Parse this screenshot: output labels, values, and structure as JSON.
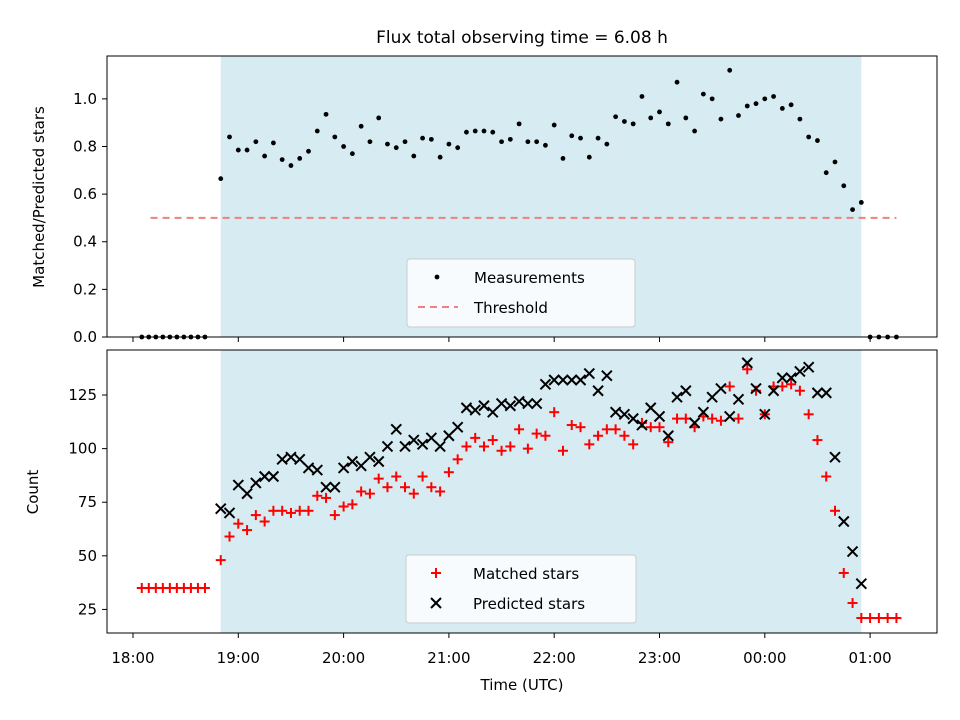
{
  "title": "Flux total observing time = 6.08 h",
  "xlabel": "Time (UTC)",
  "xticks": [
    "18:00",
    "19:00",
    "20:00",
    "21:00",
    "22:00",
    "23:00",
    "00:00",
    "01:00"
  ],
  "observing_window": {
    "start": "18:50",
    "end": "00:55",
    "color": "#add8e6"
  },
  "colors": {
    "measurements": "#000000",
    "threshold": "#f08080",
    "matched": "#ff0000",
    "predicted": "#000000"
  },
  "chart_data": [
    {
      "type": "scatter",
      "ylabel": "Matched/Predicted stars",
      "ylim": [
        0,
        1.18
      ],
      "yticks": [
        "0.0",
        "0.2",
        "0.4",
        "0.6",
        "0.8",
        "1.0"
      ],
      "threshold": {
        "label": "Threshold",
        "value": 0.5,
        "x_range": [
          "18:10",
          "01:15"
        ]
      },
      "legend": {
        "position": "bottom-center",
        "entries": [
          "Measurements",
          "Threshold"
        ]
      },
      "series": [
        {
          "name": "Measurements",
          "x": [
            "18:05",
            "18:09",
            "18:13",
            "18:17",
            "18:21",
            "18:25",
            "18:29",
            "18:33",
            "18:37",
            "18:41",
            "18:50",
            "18:55",
            "19:00",
            "19:05",
            "19:10",
            "19:15",
            "19:20",
            "19:25",
            "19:30",
            "19:35",
            "19:40",
            "19:45",
            "19:50",
            "19:55",
            "20:00",
            "20:05",
            "20:10",
            "20:15",
            "20:20",
            "20:25",
            "20:30",
            "20:35",
            "20:40",
            "20:45",
            "20:50",
            "20:55",
            "21:00",
            "21:05",
            "21:10",
            "21:15",
            "21:20",
            "21:25",
            "21:30",
            "21:35",
            "21:40",
            "21:45",
            "21:50",
            "21:55",
            "22:00",
            "22:05",
            "22:10",
            "22:15",
            "22:20",
            "22:25",
            "22:30",
            "22:35",
            "22:40",
            "22:45",
            "22:50",
            "22:55",
            "23:00",
            "23:05",
            "23:10",
            "23:15",
            "23:20",
            "23:25",
            "23:30",
            "23:35",
            "23:40",
            "23:45",
            "23:50",
            "23:55",
            "00:00",
            "00:05",
            "00:10",
            "00:15",
            "00:20",
            "00:25",
            "00:30",
            "00:35",
            "00:40",
            "00:45",
            "00:50",
            "00:55",
            "01:00",
            "01:05",
            "01:10",
            "01:15"
          ],
          "y": [
            0,
            0,
            0,
            0,
            0,
            0,
            0,
            0,
            0,
            0,
            0.665,
            0.84,
            0.785,
            0.785,
            0.82,
            0.76,
            0.815,
            0.745,
            0.72,
            0.75,
            0.78,
            0.865,
            0.935,
            0.84,
            0.8,
            0.77,
            0.885,
            0.82,
            0.92,
            0.81,
            0.795,
            0.82,
            0.76,
            0.835,
            0.83,
            0.755,
            0.81,
            0.795,
            0.86,
            0.865,
            0.865,
            0.86,
            0.82,
            0.83,
            0.895,
            0.82,
            0.82,
            0.805,
            0.89,
            0.75,
            0.845,
            0.835,
            0.755,
            0.835,
            0.81,
            0.925,
            0.905,
            0.895,
            1.01,
            0.92,
            0.945,
            0.895,
            1.07,
            0.92,
            0.865,
            1.02,
            1.0,
            0.915,
            1.12,
            0.93,
            0.97,
            0.98,
            1.0,
            1.01,
            0.96,
            0.975,
            0.915,
            0.84,
            0.825,
            0.69,
            0.735,
            0.635,
            0.535,
            0.565,
            0,
            0,
            0,
            0
          ]
        }
      ]
    },
    {
      "type": "scatter",
      "ylabel": "Count",
      "ylim": [
        14,
        146
      ],
      "yticks": [
        "25",
        "50",
        "75",
        "100",
        "125"
      ],
      "legend": {
        "position": "bottom-center",
        "entries": [
          "Matched stars",
          "Predicted stars"
        ]
      },
      "series": [
        {
          "name": "Matched stars",
          "x": [
            "18:05",
            "18:09",
            "18:13",
            "18:17",
            "18:21",
            "18:25",
            "18:29",
            "18:33",
            "18:37",
            "18:41",
            "18:50",
            "18:55",
            "19:00",
            "19:05",
            "19:10",
            "19:15",
            "19:20",
            "19:25",
            "19:30",
            "19:35",
            "19:40",
            "19:45",
            "19:50",
            "19:55",
            "20:00",
            "20:05",
            "20:10",
            "20:15",
            "20:20",
            "20:25",
            "20:30",
            "20:35",
            "20:40",
            "20:45",
            "20:50",
            "20:55",
            "21:00",
            "21:05",
            "21:10",
            "21:15",
            "21:20",
            "21:25",
            "21:30",
            "21:35",
            "21:40",
            "21:45",
            "21:50",
            "21:55",
            "22:00",
            "22:05",
            "22:10",
            "22:15",
            "22:20",
            "22:25",
            "22:30",
            "22:35",
            "22:40",
            "22:45",
            "22:50",
            "22:55",
            "23:00",
            "23:05",
            "23:10",
            "23:15",
            "23:20",
            "23:25",
            "23:30",
            "23:35",
            "23:40",
            "23:45",
            "23:50",
            "23:55",
            "00:00",
            "00:05",
            "00:10",
            "00:15",
            "00:20",
            "00:25",
            "00:30",
            "00:35",
            "00:40",
            "00:45",
            "00:50",
            "00:55",
            "01:00",
            "01:05",
            "01:10",
            "01:15"
          ],
          "y": [
            35,
            35,
            35,
            35,
            35,
            35,
            35,
            35,
            35,
            35,
            48,
            59,
            65,
            62,
            69,
            66,
            71,
            71,
            70,
            71,
            71,
            78,
            77,
            69,
            73,
            74,
            80,
            79,
            86,
            82,
            87,
            82,
            79,
            87,
            82,
            80,
            89,
            95,
            101,
            105,
            101,
            104,
            99,
            101,
            109,
            100,
            107,
            106,
            117,
            99,
            111,
            110,
            102,
            106,
            109,
            109,
            106,
            102,
            112,
            110,
            110,
            103,
            114,
            114,
            110,
            115,
            114,
            113,
            129,
            114,
            137,
            127,
            116,
            129,
            129,
            130,
            127,
            116,
            104,
            87,
            71,
            42,
            28,
            21,
            21,
            21,
            21,
            21
          ]
        },
        {
          "name": "Predicted stars",
          "x": [
            "18:50",
            "18:55",
            "19:00",
            "19:05",
            "19:10",
            "19:15",
            "19:20",
            "19:25",
            "19:30",
            "19:35",
            "19:40",
            "19:45",
            "19:50",
            "19:55",
            "20:00",
            "20:05",
            "20:10",
            "20:15",
            "20:20",
            "20:25",
            "20:30",
            "20:35",
            "20:40",
            "20:45",
            "20:50",
            "20:55",
            "21:00",
            "21:05",
            "21:10",
            "21:15",
            "21:20",
            "21:25",
            "21:30",
            "21:35",
            "21:40",
            "21:45",
            "21:50",
            "21:55",
            "22:00",
            "22:05",
            "22:10",
            "22:15",
            "22:20",
            "22:25",
            "22:30",
            "22:35",
            "22:40",
            "22:45",
            "22:50",
            "22:55",
            "23:00",
            "23:05",
            "23:10",
            "23:15",
            "23:20",
            "23:25",
            "23:30",
            "23:35",
            "23:40",
            "23:45",
            "23:50",
            "23:55",
            "00:00",
            "00:05",
            "00:10",
            "00:15",
            "00:20",
            "00:25",
            "00:30",
            "00:35",
            "00:40",
            "00:45",
            "00:50",
            "00:55"
          ],
          "y": [
            72,
            70,
            83,
            79,
            84,
            87,
            87,
            95,
            96,
            95,
            91,
            90,
            82,
            82,
            91,
            94,
            92,
            96,
            94,
            101,
            109,
            101,
            104,
            102,
            105,
            101,
            106,
            110,
            119,
            118,
            120,
            117,
            121,
            120,
            122,
            121,
            121,
            130,
            132,
            132,
            132,
            132,
            135,
            127,
            134,
            117,
            116,
            114,
            111,
            119,
            115,
            106,
            124,
            127,
            112,
            117,
            124,
            128,
            115,
            123,
            140,
            128,
            116,
            127,
            133,
            133,
            136,
            138,
            126,
            126,
            96,
            66,
            52,
            37
          ]
        }
      ]
    }
  ]
}
